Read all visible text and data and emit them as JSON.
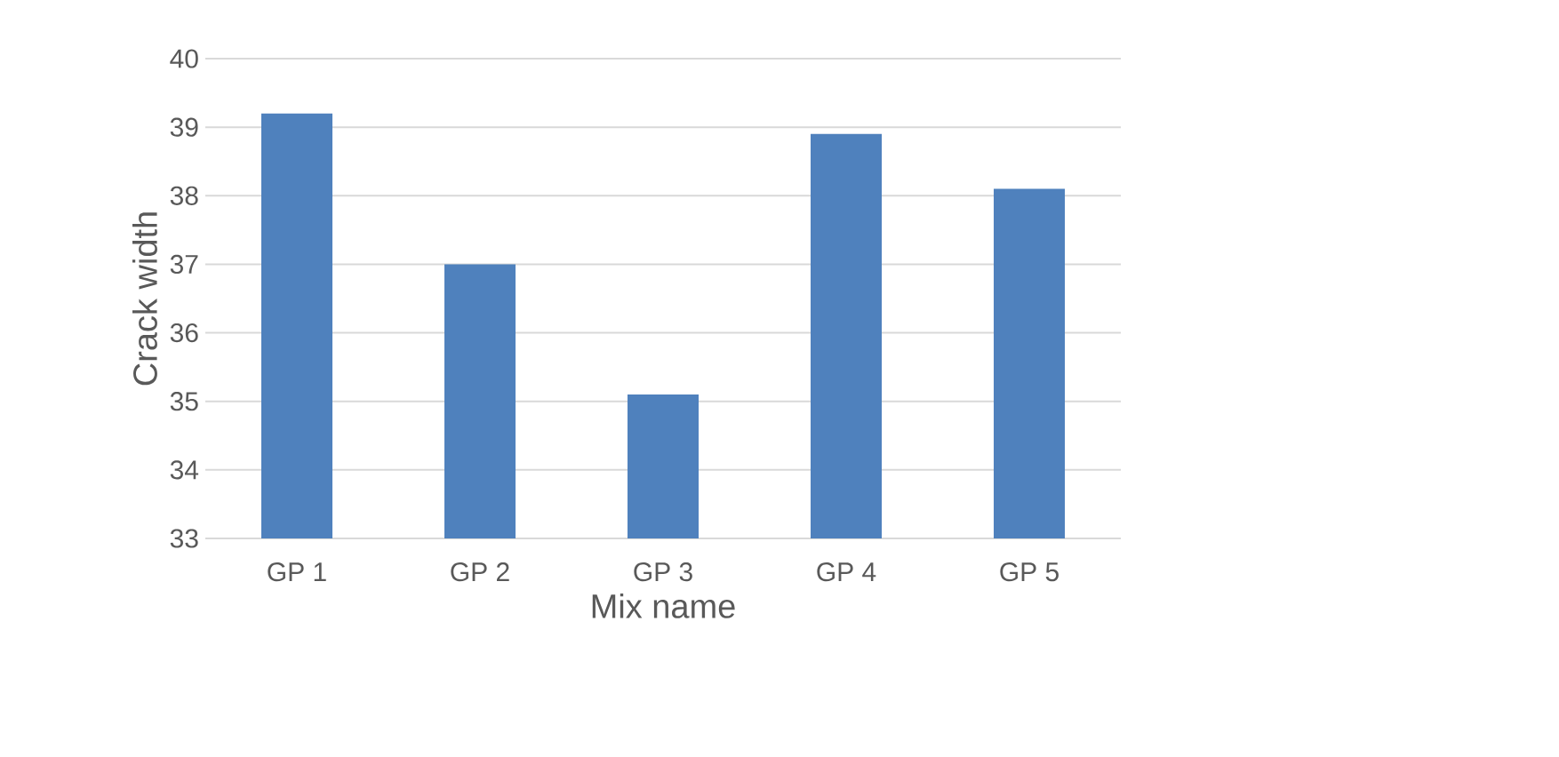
{
  "chart_data": {
    "type": "bar",
    "xlabel": "Mix name",
    "ylabel": "Crack width",
    "categories": [
      "GP 1",
      "GP 2",
      "GP 3",
      "GP 4",
      "GP 5"
    ],
    "values": [
      39.2,
      37.0,
      35.1,
      38.9,
      38.1
    ],
    "color": "#4f81bd",
    "ylim": [
      33,
      40
    ],
    "yticks": [
      33,
      34,
      35,
      36,
      37,
      38,
      39,
      40
    ],
    "grid": "y"
  }
}
